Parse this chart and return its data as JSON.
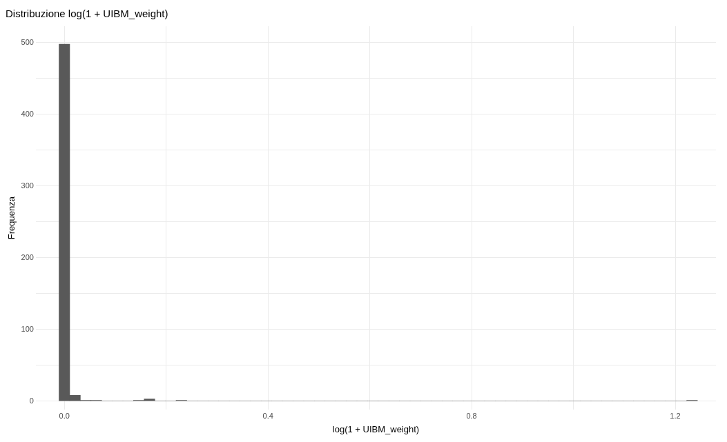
{
  "chart_data": {
    "type": "histogram",
    "title": "Distribuzione log(1 + UIBM_weight)",
    "xlabel": "log(1 + UIBM_weight)",
    "ylabel": "Frequenza",
    "bins": [
      -0.01045,
      0.01045,
      0.03135,
      0.05225,
      0.07315,
      0.09405,
      0.11495,
      0.13585,
      0.15675,
      0.17765,
      0.19855,
      0.21945,
      0.24035,
      0.26125,
      0.28215,
      0.30305,
      0.32395,
      0.34485,
      0.36575,
      0.38665,
      0.40755,
      0.42845,
      0.44935,
      0.47025,
      0.49115,
      0.51205,
      0.53295,
      0.55385,
      0.57475,
      0.59565,
      0.61655,
      0.63745,
      0.65835,
      0.67925,
      0.70015,
      0.72105,
      0.74195,
      0.76285,
      0.78375,
      0.80465,
      0.82555,
      0.84645,
      0.86735,
      0.88825,
      0.90915,
      0.93005,
      0.95095,
      0.97185,
      0.99275,
      1.01365,
      1.03455,
      1.05545,
      1.07635,
      1.09725,
      1.11815,
      1.13905,
      1.15995,
      1.18085,
      1.20175,
      1.22265,
      1.24355
    ],
    "values": [
      498,
      8,
      1,
      1,
      0,
      0,
      0,
      1,
      3,
      0,
      0,
      1,
      0,
      0,
      0,
      0,
      0,
      0,
      0,
      0,
      0,
      0,
      0,
      0,
      0,
      0,
      0,
      0,
      0,
      0,
      0,
      0,
      0,
      0,
      0,
      0,
      0,
      0,
      0,
      0,
      0,
      0,
      0,
      0,
      0,
      0,
      0,
      0,
      0,
      0,
      0,
      0,
      0,
      0,
      0,
      0,
      0,
      0,
      0,
      1
    ],
    "color": "#595959",
    "xlim": [
      -0.056,
      1.28
    ],
    "xticks": [
      {
        "value": 0,
        "label": "0.0"
      },
      {
        "value": 0.2,
        "label": null
      },
      0.4,
      {
        "value": 0.6,
        "label": null
      },
      0.8,
      {
        "value": 1.0,
        "label": null
      },
      1.2
    ],
    "ylim": [
      -12,
      523
    ],
    "yticks": [
      0,
      {
        "value": 50,
        "label": null
      },
      100,
      {
        "value": 150,
        "label": null
      },
      200,
      {
        "value": 250,
        "label": null
      },
      300,
      {
        "value": 350,
        "label": null
      },
      400,
      {
        "value": 450,
        "label": null
      },
      500
    ],
    "grid": true,
    "legend": false
  }
}
